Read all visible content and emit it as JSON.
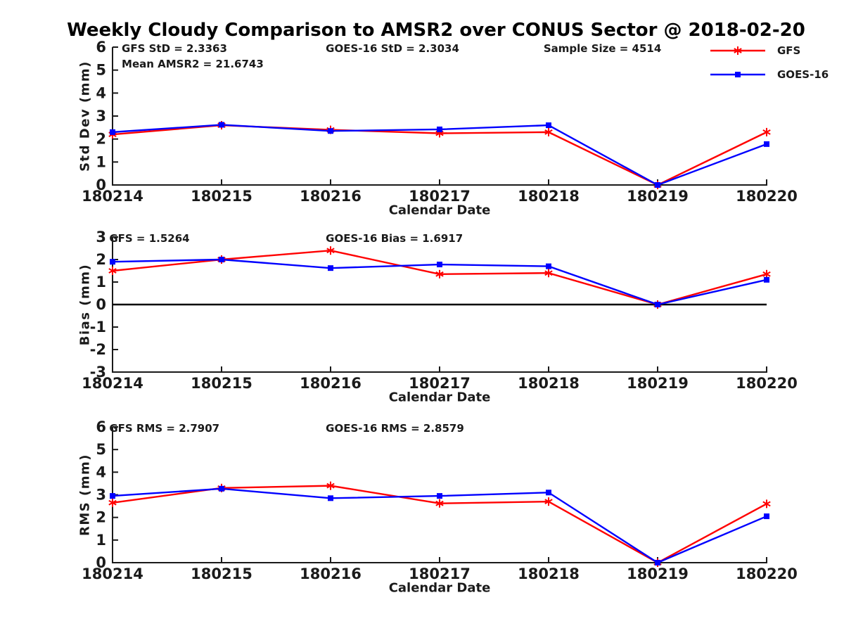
{
  "title": "Weekly Cloudy Comparison to AMSR2 over CONUS Sector @ 2018-02-20",
  "colors": {
    "gfs": "#ff0000",
    "goes16": "#0000ff",
    "axis": "#1a1a1a",
    "zero_line": "#000000"
  },
  "legend": {
    "items": [
      {
        "label": "GFS",
        "color": "#ff0000",
        "marker": "asterisk"
      },
      {
        "label": "GOES-16",
        "color": "#0000ff",
        "marker": "square"
      }
    ]
  },
  "chart_data": [
    {
      "type": "line",
      "name": "std-dev",
      "ylabel": "Std Dev (mm)",
      "xlabel": "Calendar Date",
      "ylim": [
        0,
        6
      ],
      "yticks": [
        0,
        1,
        2,
        3,
        4,
        5,
        6
      ],
      "categories": [
        "180214",
        "180215",
        "180216",
        "180217",
        "180218",
        "180219",
        "180220"
      ],
      "annotations": [
        {
          "text": "GFS StD = 2.3363",
          "fx": 0.014,
          "row": 0
        },
        {
          "text": "Mean AMSR2 = 21.6743",
          "fx": 0.014,
          "row": 1
        },
        {
          "text": "GOES-16 StD = 2.3034",
          "fx": 0.326,
          "row": 0
        },
        {
          "text": "Sample Size = 4514",
          "fx": 0.659,
          "row": 0
        }
      ],
      "zero_line": false,
      "series": [
        {
          "name": "GFS",
          "color": "#ff0000",
          "marker": "asterisk",
          "values": [
            2.2,
            2.6,
            2.4,
            2.25,
            2.3,
            0,
            2.3
          ]
        },
        {
          "name": "GOES-16",
          "color": "#0000ff",
          "marker": "square",
          "values": [
            2.3,
            2.62,
            2.35,
            2.42,
            2.6,
            0,
            1.78
          ]
        }
      ]
    },
    {
      "type": "line",
      "name": "bias",
      "ylabel": "Bias (mm)",
      "xlabel": "Calendar Date",
      "ylim": [
        -3,
        3
      ],
      "yticks": [
        -3,
        -2,
        -1,
        0,
        1,
        2,
        3
      ],
      "categories": [
        "180214",
        "180215",
        "180216",
        "180217",
        "180218",
        "180219",
        "180220"
      ],
      "annotations": [
        {
          "text": "GFS = 1.5264",
          "fx": -0.005,
          "row": 0
        },
        {
          "text": "GOES-16 Bias  = 1.6917",
          "fx": 0.326,
          "row": 0
        }
      ],
      "zero_line": true,
      "series": [
        {
          "name": "GFS",
          "color": "#ff0000",
          "marker": "asterisk",
          "values": [
            1.5,
            2.0,
            2.4,
            1.35,
            1.4,
            0,
            1.35
          ]
        },
        {
          "name": "GOES-16",
          "color": "#0000ff",
          "marker": "square",
          "values": [
            1.9,
            2.0,
            1.62,
            1.78,
            1.7,
            0,
            1.1
          ]
        }
      ]
    },
    {
      "type": "line",
      "name": "rms",
      "ylabel": "RMS (mm)",
      "xlabel": "Calendar Date",
      "ylim": [
        0,
        6
      ],
      "yticks": [
        0,
        1,
        2,
        3,
        4,
        5,
        6
      ],
      "categories": [
        "180214",
        "180215",
        "180216",
        "180217",
        "180218",
        "180219",
        "180220"
      ],
      "annotations": [
        {
          "text": "GFS RMS = 2.7907",
          "fx": -0.005,
          "row": 0
        },
        {
          "text": "GOES-16 RMS = 2.8579",
          "fx": 0.326,
          "row": 0
        }
      ],
      "zero_line": false,
      "series": [
        {
          "name": "GFS",
          "color": "#ff0000",
          "marker": "asterisk",
          "values": [
            2.65,
            3.3,
            3.4,
            2.62,
            2.7,
            0,
            2.6
          ]
        },
        {
          "name": "GOES-16",
          "color": "#0000ff",
          "marker": "square",
          "values": [
            2.95,
            3.27,
            2.85,
            2.95,
            3.1,
            0,
            2.05
          ]
        }
      ]
    }
  ]
}
